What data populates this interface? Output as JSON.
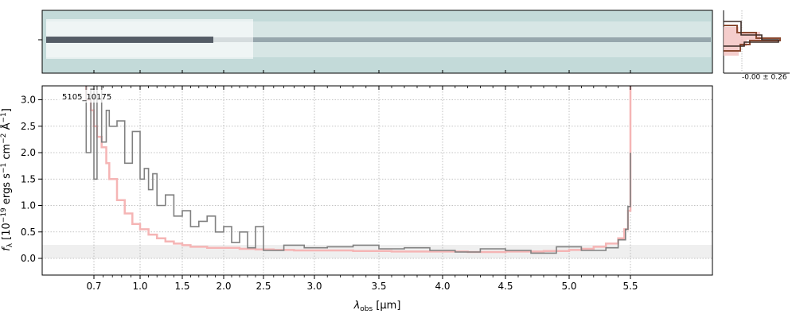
{
  "chart_data": {
    "type": "line",
    "object_label": "5105_10175",
    "xlabel_main": "λ",
    "xlabel_sub": "obs",
    "xlabel_unit": " [μm]",
    "ylabel_main": "f",
    "ylabel_sub": "λ",
    "ylabel_rest": " [10",
    "ylabel_exp": "−19",
    "ylabel_units": " ergs s",
    "ylabel_tail": "−1",
    "ylabel_cm": " cm",
    "ylabel_cm_exp": "−2",
    "ylabel_A": " Å",
    "ylabel_A_exp": "−1",
    "ylabel_end": "]",
    "ylim": [
      -0.35,
      3.28
    ],
    "x_ticks": [
      "0.7",
      "1.0",
      "1.5",
      "2.0",
      "2.5",
      "3.0",
      "3.5",
      "4.0",
      "4.5",
      "5.0",
      "5.5"
    ],
    "y_ticks": [
      "0.0",
      "0.5",
      "1.0",
      "1.5",
      "2.0",
      "2.5",
      "3.0"
    ],
    "y_tick_values": [
      0.0,
      0.5,
      1.0,
      1.5,
      2.0,
      2.5,
      3.0
    ],
    "grid": true,
    "hist_label": "-0.00 ± 0.26",
    "colors": {
      "spectrum": "#808080",
      "model": "#f5b5b5",
      "grid": "#b0b0b0",
      "image_bg": "#c3dad9",
      "hist_dark": "#3b2a25",
      "hist_brown": "#8b4a32",
      "hist_pink": "#f3c0bf"
    },
    "series": [
      {
        "x": [
          0.62,
          0.65,
          0.68,
          0.7,
          0.72,
          0.75,
          0.78,
          0.8,
          0.85,
          0.9,
          0.95,
          1.0,
          1.05,
          1.1,
          1.15,
          1.2,
          1.3,
          1.4,
          1.5,
          1.6,
          1.7,
          1.8,
          1.9,
          2.0,
          2.1,
          2.2,
          2.3,
          2.4,
          2.5,
          2.7,
          2.9,
          3.1,
          3.3,
          3.5,
          3.7,
          3.9,
          4.1,
          4.3,
          4.5,
          4.7,
          4.9,
          5.1,
          5.3,
          5.4,
          5.46,
          5.48,
          5.5
        ],
        "values": [
          3.3,
          2.0,
          3.2,
          1.5,
          3.3,
          2.2,
          2.8,
          2.5,
          2.6,
          1.8,
          2.4,
          1.5,
          1.7,
          1.3,
          1.6,
          1.0,
          1.2,
          0.8,
          0.9,
          0.6,
          0.7,
          0.8,
          0.5,
          0.6,
          0.3,
          0.5,
          0.2,
          0.6,
          0.15,
          0.25,
          0.2,
          0.22,
          0.25,
          0.18,
          0.2,
          0.15,
          0.12,
          0.18,
          0.15,
          0.1,
          0.22,
          0.15,
          0.2,
          0.35,
          0.55,
          0.98,
          2.0
        ]
      },
      {
        "x": [
          0.62,
          0.65,
          0.68,
          0.7,
          0.72,
          0.75,
          0.78,
          0.8,
          0.85,
          0.9,
          0.95,
          1.0,
          1.1,
          1.2,
          1.3,
          1.4,
          1.5,
          1.6,
          1.8,
          2.0,
          2.2,
          2.4,
          2.6,
          2.8,
          3.0,
          3.3,
          3.6,
          3.9,
          4.2,
          4.5,
          4.8,
          5.0,
          5.1,
          5.2,
          5.3,
          5.4,
          5.45,
          5.48,
          5.5
        ],
        "values": [
          3.3,
          3.0,
          2.8,
          2.5,
          2.3,
          2.1,
          1.8,
          1.5,
          1.1,
          0.85,
          0.65,
          0.55,
          0.45,
          0.38,
          0.32,
          0.28,
          0.25,
          0.22,
          0.2,
          0.2,
          0.18,
          0.17,
          0.16,
          0.15,
          0.15,
          0.14,
          0.13,
          0.13,
          0.12,
          0.13,
          0.14,
          0.16,
          0.18,
          0.22,
          0.28,
          0.38,
          0.55,
          0.9,
          3.3
        ]
      }
    ]
  }
}
